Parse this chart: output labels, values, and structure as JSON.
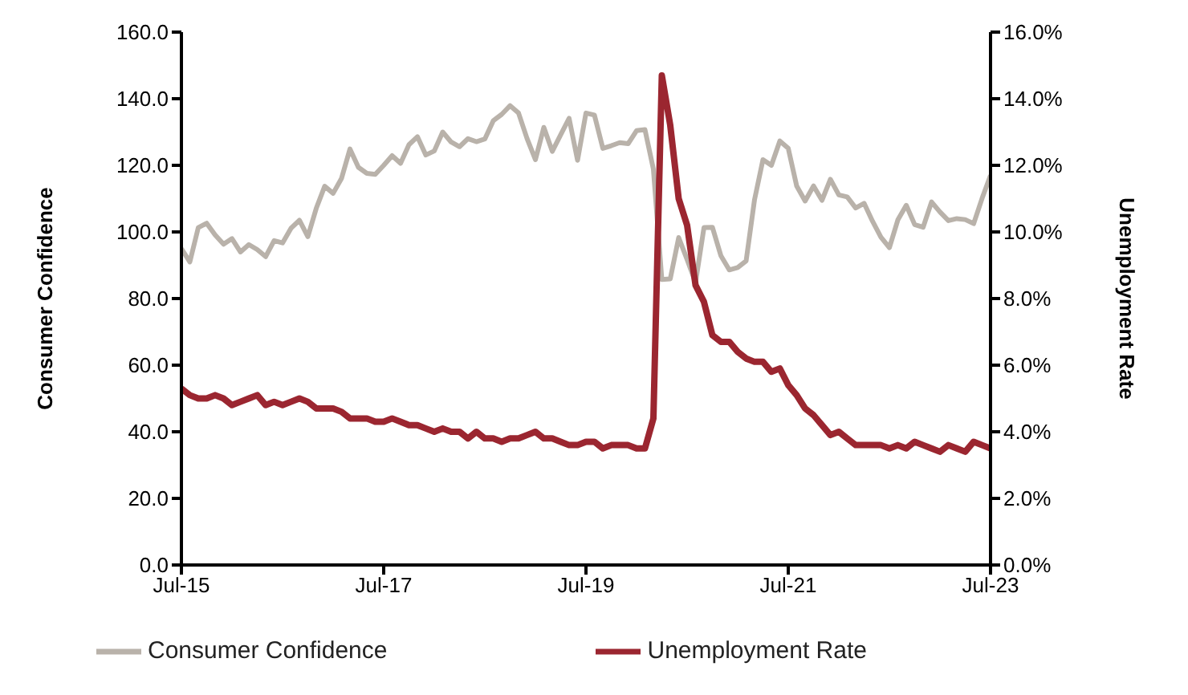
{
  "chart_data": {
    "type": "line",
    "x": [
      "2015-07",
      "2015-08",
      "2015-09",
      "2015-10",
      "2015-11",
      "2015-12",
      "2016-01",
      "2016-02",
      "2016-03",
      "2016-04",
      "2016-05",
      "2016-06",
      "2016-07",
      "2016-08",
      "2016-09",
      "2016-10",
      "2016-11",
      "2016-12",
      "2017-01",
      "2017-02",
      "2017-03",
      "2017-04",
      "2017-05",
      "2017-06",
      "2017-07",
      "2017-08",
      "2017-09",
      "2017-10",
      "2017-11",
      "2017-12",
      "2018-01",
      "2018-02",
      "2018-03",
      "2018-04",
      "2018-05",
      "2018-06",
      "2018-07",
      "2018-08",
      "2018-09",
      "2018-10",
      "2018-11",
      "2018-12",
      "2019-01",
      "2019-02",
      "2019-03",
      "2019-04",
      "2019-05",
      "2019-06",
      "2019-07",
      "2019-08",
      "2019-09",
      "2019-10",
      "2019-11",
      "2019-12",
      "2020-01",
      "2020-02",
      "2020-03",
      "2020-04",
      "2020-05",
      "2020-06",
      "2020-07",
      "2020-08",
      "2020-09",
      "2020-10",
      "2020-11",
      "2020-12",
      "2021-01",
      "2021-02",
      "2021-03",
      "2021-04",
      "2021-05",
      "2021-06",
      "2021-07",
      "2021-08",
      "2021-09",
      "2021-10",
      "2021-11",
      "2021-12",
      "2022-01",
      "2022-02",
      "2022-03",
      "2022-04",
      "2022-05",
      "2022-06",
      "2022-07",
      "2022-08",
      "2022-09",
      "2022-10",
      "2022-11",
      "2022-12",
      "2023-01",
      "2023-02",
      "2023-03",
      "2023-04",
      "2023-05",
      "2023-06",
      "2023-07"
    ],
    "series": [
      {
        "name": "Consumer Confidence",
        "color": "#b9b2aa",
        "values": [
          95,
          91,
          101.3,
          102.6,
          99.1,
          96.3,
          98,
          94,
          96.2,
          94.7,
          92.6,
          97.4,
          96.7,
          101.1,
          103.5,
          98.6,
          107.1,
          113.7,
          111.6,
          116.1,
          124.9,
          119.4,
          117.6,
          117.3,
          120,
          122.9,
          120.6,
          126.2,
          128.6,
          123.1,
          124.3,
          130,
          127,
          125.6,
          128,
          127.1,
          127.9,
          133.4,
          135.3,
          137.9,
          135.7,
          128.1,
          121.7,
          131.4,
          124.2,
          129.2,
          134.1,
          121.5,
          135.7,
          135.1,
          125.1,
          125.9,
          126.8,
          126.5,
          130.4,
          130.7,
          118.8,
          85.7,
          85.9,
          98.3,
          91.7,
          84.8,
          101.3,
          101.4,
          92.9,
          88.6,
          89.3,
          91.3,
          109.7,
          121.7,
          120,
          127.3,
          125.1,
          113.8,
          109.3,
          113.8,
          109.5,
          115.8,
          111.1,
          110.5,
          107.2,
          108.6,
          103.2,
          98.4,
          95.3,
          103.6,
          108,
          102.2,
          101.4,
          109,
          106,
          103.4,
          104,
          103.7,
          102.5,
          110.1,
          117
        ]
      },
      {
        "name": "Unemployment Rate",
        "color": "#9b2630",
        "axis": "y2",
        "values": [
          5.3,
          5.1,
          5.0,
          5.0,
          5.1,
          5.0,
          4.8,
          4.9,
          5.0,
          5.1,
          4.8,
          4.9,
          4.8,
          4.9,
          5.0,
          4.9,
          4.7,
          4.7,
          4.7,
          4.6,
          4.4,
          4.4,
          4.4,
          4.3,
          4.3,
          4.4,
          4.3,
          4.2,
          4.2,
          4.1,
          4.0,
          4.1,
          4.0,
          4.0,
          3.8,
          4.0,
          3.8,
          3.8,
          3.7,
          3.8,
          3.8,
          3.9,
          4.0,
          3.8,
          3.8,
          3.7,
          3.6,
          3.6,
          3.7,
          3.7,
          3.5,
          3.6,
          3.6,
          3.6,
          3.5,
          3.5,
          4.4,
          14.7,
          13.2,
          11.0,
          10.2,
          8.4,
          7.9,
          6.9,
          6.7,
          6.7,
          6.4,
          6.2,
          6.1,
          6.1,
          5.8,
          5.9,
          5.4,
          5.1,
          4.7,
          4.5,
          4.2,
          3.9,
          4.0,
          3.8,
          3.6,
          3.6,
          3.6,
          3.6,
          3.5,
          3.6,
          3.5,
          3.7,
          3.6,
          3.5,
          3.4,
          3.6,
          3.5,
          3.4,
          3.7,
          3.6,
          3.5
        ]
      }
    ],
    "xlim": [
      "2015-07",
      "2023-07"
    ],
    "xticks": [
      {
        "value": "2015-07",
        "label": "Jul-15"
      },
      {
        "value": "2017-07",
        "label": "Jul-17"
      },
      {
        "value": "2019-07",
        "label": "Jul-19"
      },
      {
        "value": "2021-07",
        "label": "Jul-21"
      },
      {
        "value": "2023-07",
        "label": "Jul-23"
      }
    ],
    "ylim": [
      0,
      160
    ],
    "yticks": [
      {
        "value": 0,
        "label": "0.0"
      },
      {
        "value": 20,
        "label": "20.0"
      },
      {
        "value": 40,
        "label": "40.0"
      },
      {
        "value": 60,
        "label": "60.0"
      },
      {
        "value": 80,
        "label": "80.0"
      },
      {
        "value": 100,
        "label": "100.0"
      },
      {
        "value": 120,
        "label": "120.0"
      },
      {
        "value": 140,
        "label": "140.0"
      },
      {
        "value": 160,
        "label": "160.0"
      }
    ],
    "y2lim": [
      0,
      16
    ],
    "y2ticks": [
      {
        "value": 0,
        "label": "0.0%"
      },
      {
        "value": 2,
        "label": "2.0%"
      },
      {
        "value": 4,
        "label": "4.0%"
      },
      {
        "value": 6,
        "label": "6.0%"
      },
      {
        "value": 8,
        "label": "8.0%"
      },
      {
        "value": 10,
        "label": "10.0%"
      },
      {
        "value": 12,
        "label": "12.0%"
      },
      {
        "value": 14,
        "label": "14.0%"
      },
      {
        "value": 16,
        "label": "16.0%"
      }
    ],
    "ylabel": "Consumer Confidence",
    "y2label": "Unemployment Rate",
    "legend": "bottom",
    "grid": false,
    "marker": "none",
    "line_style": "solid"
  }
}
